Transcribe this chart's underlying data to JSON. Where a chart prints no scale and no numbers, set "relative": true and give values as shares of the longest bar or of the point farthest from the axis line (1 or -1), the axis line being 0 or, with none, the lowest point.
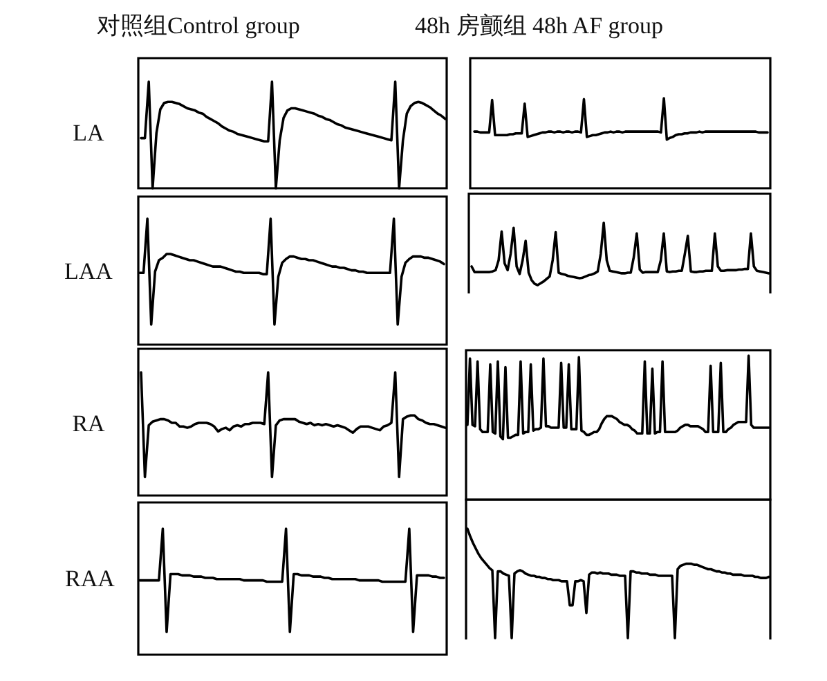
{
  "chart_data": [
    {
      "type": "line",
      "relative": true,
      "title": "对照组Control group",
      "ylabel": "LA",
      "color": "#000000",
      "categories": [
        null,
        null,
        null,
        null,
        null,
        null,
        null,
        null,
        null,
        null,
        null,
        null,
        null,
        null,
        null,
        null,
        null,
        null,
        null,
        null,
        null,
        null,
        null,
        null,
        null,
        null,
        null,
        null,
        null,
        null,
        null,
        null,
        null,
        null,
        null,
        null,
        null,
        null,
        null,
        null,
        null,
        null,
        null,
        null,
        null,
        null,
        null,
        null,
        null,
        null,
        null,
        null,
        null,
        null,
        null,
        null,
        null,
        null,
        null,
        null,
        null,
        null,
        null,
        null,
        null,
        null,
        null,
        null,
        null,
        null,
        null,
        null,
        null,
        null,
        null,
        null,
        null,
        null,
        null,
        null
      ],
      "values": [
        0.47,
        0.47,
        1,
        0,
        0.52,
        0.74,
        0.8,
        0.81,
        0.81,
        0.8,
        0.79,
        0.77,
        0.75,
        0.74,
        0.73,
        0.71,
        0.7,
        0.67,
        0.65,
        0.63,
        0.61,
        0.58,
        0.56,
        0.54,
        0.53,
        0.51,
        0.5,
        0.49,
        0.48,
        0.47,
        0.46,
        0.45,
        0.44,
        0.44,
        1,
        0,
        0.45,
        0.66,
        0.73,
        0.75,
        0.75,
        0.74,
        0.73,
        0.72,
        0.71,
        0.7,
        0.68,
        0.67,
        0.65,
        0.64,
        0.62,
        0.6,
        0.59,
        0.57,
        0.56,
        0.55,
        0.54,
        0.53,
        0.52,
        0.51,
        0.5,
        0.49,
        0.48,
        0.47,
        0.46,
        0.45,
        1,
        0,
        0.45,
        0.7,
        0.77,
        0.8,
        0.81,
        0.8,
        0.78,
        0.76,
        0.73,
        0.7,
        0.68,
        0.65
      ]
    },
    {
      "type": "line",
      "relative": true,
      "title": "48h 房颤组 48h AF group",
      "color": "#000000",
      "categories": [
        null,
        null,
        null,
        null,
        null,
        null,
        null,
        null,
        null,
        null,
        null,
        null,
        null,
        null,
        null,
        null,
        null,
        null,
        null,
        null,
        null,
        null,
        null,
        null,
        null,
        null,
        null,
        null,
        null,
        null,
        null,
        null,
        null,
        null,
        null,
        null,
        null,
        null,
        null,
        null,
        null,
        null,
        null,
        null,
        null,
        null,
        null,
        null,
        null,
        null,
        null,
        null,
        null,
        null,
        null,
        null,
        null,
        null,
        null,
        null,
        null,
        null,
        null,
        null,
        null,
        null,
        null,
        null,
        null,
        null,
        null,
        null,
        null,
        null,
        null,
        null,
        null,
        null,
        null,
        null,
        null,
        null,
        null,
        null,
        null,
        null,
        null,
        null,
        null,
        null,
        null,
        null,
        null,
        null,
        null,
        null,
        null,
        null,
        null,
        null
      ],
      "values": [
        0.63,
        0.63,
        0.62,
        0.62,
        0.62,
        0.62,
        0.98,
        0.59,
        0.59,
        0.59,
        0.59,
        0.59,
        0.6,
        0.6,
        0.61,
        0.61,
        0.61,
        0.94,
        0.57,
        0.58,
        0.59,
        0.6,
        0.61,
        0.62,
        0.62,
        0.63,
        0.63,
        0.62,
        0.63,
        0.63,
        0.62,
        0.63,
        0.63,
        0.62,
        0.63,
        0.63,
        0.62,
        0.99,
        0.57,
        0.58,
        0.59,
        0.59,
        0.6,
        0.61,
        0.62,
        0.62,
        0.63,
        0.62,
        0.63,
        0.63,
        0.62,
        0.63,
        0.63,
        0.63,
        0.63,
        0.63,
        0.63,
        0.63,
        0.63,
        0.63,
        0.63,
        0.63,
        0.63,
        0.62,
        1,
        0.54,
        0.56,
        0.57,
        0.59,
        0.6,
        0.6,
        0.61,
        0.61,
        0.62,
        0.62,
        0.62,
        0.63,
        0.62,
        0.63,
        0.63,
        0.63,
        0.63,
        0.63,
        0.63,
        0.63,
        0.63,
        0.63,
        0.63,
        0.63,
        0.63,
        0.63,
        0.63,
        0.63,
        0.63,
        0.63,
        0.63,
        0.62,
        0.62,
        0.62,
        0.62
      ]
    },
    {
      "type": "line",
      "relative": true,
      "ylabel": "LAA",
      "color": "#000000",
      "categories": [
        null,
        null,
        null,
        null,
        null,
        null,
        null,
        null,
        null,
        null,
        null,
        null,
        null,
        null,
        null,
        null,
        null,
        null,
        null,
        null,
        null,
        null,
        null,
        null,
        null,
        null,
        null,
        null,
        null,
        null,
        null,
        null,
        null,
        null,
        null,
        null,
        null,
        null,
        null,
        null,
        null,
        null,
        null,
        null,
        null,
        null,
        null,
        null,
        null,
        null,
        null,
        null,
        null,
        null,
        null,
        null,
        null,
        null,
        null,
        null,
        null,
        null,
        null,
        null,
        null,
        null,
        null,
        null,
        null,
        null,
        null,
        null,
        null,
        null,
        null,
        null,
        null,
        null,
        null,
        null
      ],
      "values": [
        0.57,
        0.57,
        1,
        0.16,
        0.58,
        0.67,
        0.69,
        0.72,
        0.72,
        0.71,
        0.7,
        0.69,
        0.68,
        0.67,
        0.67,
        0.66,
        0.65,
        0.64,
        0.63,
        0.62,
        0.62,
        0.62,
        0.61,
        0.6,
        0.59,
        0.58,
        0.58,
        0.57,
        0.57,
        0.57,
        0.57,
        0.57,
        0.56,
        0.56,
        1,
        0.16,
        0.54,
        0.65,
        0.68,
        0.7,
        0.7,
        0.69,
        0.68,
        0.68,
        0.67,
        0.67,
        0.66,
        0.65,
        0.64,
        0.63,
        0.62,
        0.62,
        0.61,
        0.61,
        0.6,
        0.59,
        0.59,
        0.58,
        0.58,
        0.57,
        0.57,
        0.57,
        0.57,
        0.57,
        0.57,
        0.57,
        1,
        0.16,
        0.54,
        0.65,
        0.68,
        0.7,
        0.7,
        0.7,
        0.69,
        0.69,
        0.68,
        0.67,
        0.66,
        0.64
      ]
    },
    {
      "type": "line",
      "relative": true,
      "color": "#000000",
      "categories": [
        null,
        null,
        null,
        null,
        null,
        null,
        null,
        null,
        null,
        null,
        null,
        null,
        null,
        null,
        null,
        null,
        null,
        null,
        null,
        null,
        null,
        null,
        null,
        null,
        null,
        null,
        null,
        null,
        null,
        null,
        null,
        null,
        null,
        null,
        null,
        null,
        null,
        null,
        null,
        null,
        null,
        null,
        null,
        null,
        null,
        null,
        null,
        null,
        null,
        null,
        null,
        null,
        null,
        null,
        null,
        null,
        null,
        null,
        null,
        null,
        null,
        null,
        null,
        null,
        null,
        null,
        null,
        null,
        null,
        null,
        null,
        null,
        null,
        null,
        null,
        null,
        null,
        null,
        null,
        null,
        null,
        null,
        null,
        null,
        null,
        null,
        null,
        null,
        null,
        null,
        null,
        null,
        null,
        null,
        null,
        null,
        null,
        null,
        null,
        null
      ],
      "values": [
        0.3,
        0.21,
        0.21,
        0.21,
        0.21,
        0.21,
        0.21,
        0.22,
        0.24,
        0.4,
        0.86,
        0.35,
        0.24,
        0.5,
        0.92,
        0.3,
        0.18,
        0.4,
        0.71,
        0.2,
        0.08,
        0.02,
        0,
        0.03,
        0.06,
        0.1,
        0.14,
        0.4,
        0.85,
        0.2,
        0.18,
        0.17,
        0.15,
        0.14,
        0.13,
        0.12,
        0.11,
        0.12,
        0.14,
        0.16,
        0.17,
        0.19,
        0.22,
        0.5,
        1,
        0.4,
        0.23,
        0.22,
        0.21,
        0.2,
        0.19,
        0.19,
        0.2,
        0.2,
        0.45,
        0.83,
        0.25,
        0.2,
        0.21,
        0.21,
        0.21,
        0.21,
        0.21,
        0.4,
        0.83,
        0.22,
        0.21,
        0.22,
        0.22,
        0.23,
        0.23,
        0.5,
        0.79,
        0.22,
        0.21,
        0.21,
        0.22,
        0.22,
        0.23,
        0.23,
        0.23,
        0.83,
        0.3,
        0.23,
        0.23,
        0.24,
        0.24,
        0.24,
        0.24,
        0.25,
        0.25,
        0.26,
        0.26,
        0.83,
        0.3,
        0.23,
        0.22,
        0.21,
        0.2,
        0.19
      ]
    },
    {
      "type": "line",
      "relative": true,
      "ylabel": "RA",
      "color": "#000000",
      "categories": [
        null,
        null,
        null,
        null,
        null,
        null,
        null,
        null,
        null,
        null,
        null,
        null,
        null,
        null,
        null,
        null,
        null,
        null,
        null,
        null,
        null,
        null,
        null,
        null,
        null,
        null,
        null,
        null,
        null,
        null,
        null,
        null,
        null,
        null,
        null,
        null,
        null,
        null,
        null,
        null,
        null,
        null,
        null,
        null,
        null,
        null,
        null,
        null,
        null,
        null,
        null,
        null,
        null,
        null,
        null,
        null,
        null,
        null,
        null,
        null,
        null,
        null,
        null,
        null,
        null,
        null,
        null,
        null,
        null,
        null,
        null,
        null,
        null,
        null,
        null,
        null,
        null,
        null,
        null,
        null
      ],
      "values": [
        1,
        0.15,
        0.57,
        0.6,
        0.61,
        0.62,
        0.62,
        0.61,
        0.59,
        0.59,
        0.56,
        0.56,
        0.55,
        0.56,
        0.58,
        0.59,
        0.59,
        0.59,
        0.58,
        0.56,
        0.52,
        0.54,
        0.55,
        0.53,
        0.56,
        0.57,
        0.56,
        0.58,
        0.58,
        0.59,
        0.59,
        0.59,
        0.58,
        1,
        0.15,
        0.57,
        0.61,
        0.62,
        0.62,
        0.62,
        0.62,
        0.6,
        0.59,
        0.58,
        0.59,
        0.57,
        0.58,
        0.57,
        0.58,
        0.57,
        0.56,
        0.57,
        0.56,
        0.55,
        0.53,
        0.51,
        0.54,
        0.56,
        0.56,
        0.56,
        0.55,
        0.54,
        0.53,
        0.56,
        0.57,
        0.59,
        1,
        0.15,
        0.62,
        0.64,
        0.65,
        0.65,
        0.62,
        0.61,
        0.59,
        0.58,
        0.58,
        0.57,
        0.56,
        0.55
      ]
    },
    {
      "type": "line",
      "relative": true,
      "color": "#000000",
      "categories": [
        null,
        null,
        null,
        null,
        null,
        null,
        null,
        null,
        null,
        null,
        null,
        null,
        null,
        null,
        null,
        null,
        null,
        null,
        null,
        null,
        null,
        null,
        null,
        null,
        null,
        null,
        null,
        null,
        null,
        null,
        null,
        null,
        null,
        null,
        null,
        null,
        null,
        null,
        null,
        null,
        null,
        null,
        null,
        null,
        null,
        null,
        null,
        null,
        null,
        null,
        null,
        null,
        null,
        null,
        null,
        null,
        null,
        null,
        null,
        null,
        null,
        null,
        null,
        null,
        null,
        null,
        null,
        null,
        null,
        null,
        null,
        null,
        null,
        null,
        null,
        null,
        null,
        null,
        null,
        null,
        null,
        null,
        null,
        null,
        null,
        null,
        null,
        null,
        null,
        null,
        null,
        null,
        null,
        null,
        null,
        null,
        null,
        null,
        null,
        null,
        null,
        null,
        null,
        null,
        null,
        null,
        null,
        null,
        null,
        null,
        null,
        null,
        null,
        null,
        null,
        null,
        null,
        null,
        null,
        null
      ],
      "values": [
        0.52,
        0.98,
        0.52,
        0.51,
        0.96,
        0.49,
        0.47,
        0.47,
        0.47,
        0.94,
        0.47,
        0.46,
        0.96,
        0.44,
        0.42,
        0.92,
        0.43,
        0.43,
        0.44,
        0.45,
        0.45,
        0.96,
        0.46,
        0.47,
        0.47,
        0.94,
        0.48,
        0.49,
        0.49,
        0.5,
        0.98,
        0.51,
        0.51,
        0.5,
        0.5,
        0.5,
        0.5,
        0.95,
        0.5,
        0.5,
        0.94,
        0.49,
        0.49,
        0.49,
        0.99,
        0.48,
        0.47,
        0.45,
        0.45,
        0.46,
        0.47,
        0.47,
        0.49,
        0.53,
        0.56,
        0.58,
        0.58,
        0.58,
        0.57,
        0.56,
        0.54,
        0.53,
        0.52,
        0.52,
        0.51,
        0.49,
        0.48,
        0.46,
        0.46,
        0.46,
        0.96,
        0.46,
        0.46,
        0.91,
        0.46,
        0.47,
        0.47,
        0.96,
        0.47,
        0.47,
        0.47,
        0.47,
        0.47,
        0.48,
        0.5,
        0.51,
        0.52,
        0.52,
        0.51,
        0.51,
        0.51,
        0.51,
        0.5,
        0.49,
        0.47,
        0.47,
        0.93,
        0.47,
        0.47,
        0.47,
        0.95,
        0.47,
        0.47,
        0.49,
        0.5,
        0.52,
        0.53,
        0.54,
        0.54,
        0.54,
        0.54,
        1,
        0.52,
        0.5,
        0.5,
        0.5,
        0.5,
        0.5,
        0.5,
        0.5
      ]
    },
    {
      "type": "line",
      "relative": true,
      "ylabel": "RAA",
      "color": "#000000",
      "categories": [
        null,
        null,
        null,
        null,
        null,
        null,
        null,
        null,
        null,
        null,
        null,
        null,
        null,
        null,
        null,
        null,
        null,
        null,
        null,
        null,
        null,
        null,
        null,
        null,
        null,
        null,
        null,
        null,
        null,
        null,
        null,
        null,
        null,
        null,
        null,
        null,
        null,
        null,
        null,
        null,
        null,
        null,
        null,
        null,
        null,
        null,
        null,
        null,
        null,
        null,
        null,
        null,
        null,
        null,
        null,
        null,
        null,
        null,
        null,
        null,
        null,
        null,
        null,
        null,
        null,
        null,
        null,
        null,
        null,
        null,
        null,
        null,
        null,
        null,
        null,
        null,
        null,
        null,
        null,
        null
      ],
      "values": [
        0.59,
        0.59,
        0.59,
        0.59,
        0.59,
        0.59,
        1,
        0.18,
        0.64,
        0.64,
        0.64,
        0.63,
        0.63,
        0.63,
        0.62,
        0.62,
        0.62,
        0.61,
        0.61,
        0.61,
        0.6,
        0.6,
        0.6,
        0.6,
        0.6,
        0.6,
        0.6,
        0.59,
        0.59,
        0.59,
        0.59,
        0.59,
        0.59,
        0.58,
        0.58,
        0.58,
        0.58,
        0.58,
        1,
        0.18,
        0.64,
        0.64,
        0.63,
        0.63,
        0.63,
        0.62,
        0.62,
        0.62,
        0.61,
        0.61,
        0.6,
        0.6,
        0.6,
        0.6,
        0.6,
        0.6,
        0.6,
        0.59,
        0.59,
        0.59,
        0.59,
        0.59,
        0.59,
        0.58,
        0.58,
        0.58,
        0.58,
        0.58,
        0.58,
        0.58,
        1,
        0.18,
        0.63,
        0.63,
        0.63,
        0.63,
        0.62,
        0.62,
        0.61,
        0.61
      ]
    },
    {
      "type": "line",
      "relative": true,
      "color": "#000000",
      "categories": [
        null,
        null,
        null,
        null,
        null,
        null,
        null,
        null,
        null,
        null,
        null,
        null,
        null,
        null,
        null,
        null,
        null,
        null,
        null,
        null,
        null,
        null,
        null,
        null,
        null,
        null,
        null,
        null,
        null,
        null,
        null,
        null,
        null,
        null,
        null,
        null,
        null,
        null,
        null,
        null,
        null,
        null,
        null,
        null,
        null,
        null,
        null,
        null,
        null,
        null,
        null,
        null,
        null,
        null,
        null,
        null,
        null,
        null,
        null,
        null,
        null,
        null,
        null,
        null,
        null,
        null,
        null,
        null,
        null,
        null,
        null,
        null,
        null,
        null,
        null,
        null,
        null,
        null,
        null,
        null,
        null,
        null,
        null,
        null,
        null,
        null,
        null,
        null,
        null,
        null,
        null,
        null,
        null,
        null,
        null,
        null,
        null,
        null,
        null,
        null,
        null,
        null,
        null,
        null,
        null,
        null,
        null,
        null,
        null,
        null
      ],
      "values": [
        1,
        0.93,
        0.87,
        0.82,
        0.77,
        0.73,
        0.7,
        0.67,
        0.64,
        0.62,
        0,
        0.61,
        0.61,
        0.59,
        0.58,
        0.57,
        0,
        0.59,
        0.61,
        0.62,
        0.61,
        0.59,
        0.58,
        0.57,
        0.57,
        0.56,
        0.56,
        0.55,
        0.55,
        0.54,
        0.54,
        0.53,
        0.53,
        0.53,
        0.52,
        0.52,
        0.52,
        0.3,
        0.3,
        0.52,
        0.52,
        0.53,
        0.52,
        0.23,
        0.58,
        0.6,
        0.6,
        0.59,
        0.6,
        0.59,
        0.59,
        0.59,
        0.58,
        0.58,
        0.58,
        0.57,
        0.57,
        0.57,
        0,
        0.61,
        0.61,
        0.6,
        0.6,
        0.59,
        0.59,
        0.59,
        0.58,
        0.58,
        0.58,
        0.57,
        0.57,
        0.57,
        0.57,
        0.57,
        0.57,
        0,
        0.63,
        0.66,
        0.67,
        0.68,
        0.68,
        0.68,
        0.67,
        0.67,
        0.66,
        0.65,
        0.64,
        0.63,
        0.63,
        0.62,
        0.61,
        0.61,
        0.6,
        0.6,
        0.59,
        0.59,
        0.58,
        0.58,
        0.58,
        0.58,
        0.57,
        0.57,
        0.57,
        0.57,
        0.56,
        0.56,
        0.55,
        0.55,
        0.55,
        0.56
      ]
    }
  ]
}
